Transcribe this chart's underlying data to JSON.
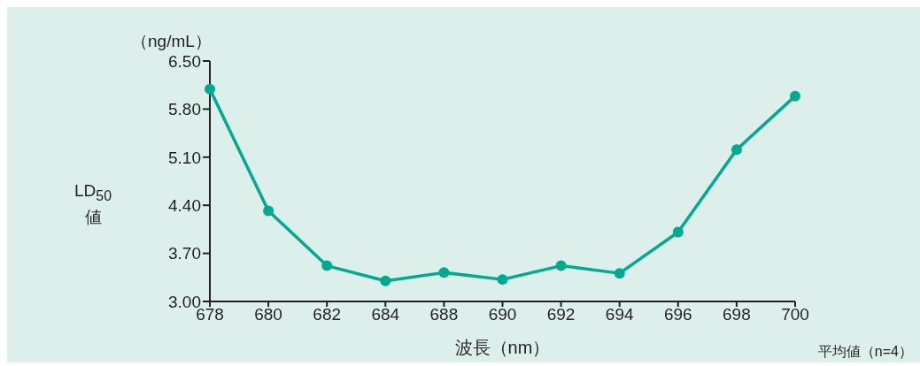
{
  "chart_data": {
    "type": "line",
    "ylabel": "LD$_{50}$値",
    "xlabel": "波長（nm）",
    "annotations": [
      "（ng/mL）",
      "平均値（n=4）"
    ],
    "categories": [
      "678",
      "680",
      "682",
      "684",
      "688",
      "690",
      "692",
      "694",
      "696",
      "698",
      "700"
    ],
    "series": [
      {
        "color": "#00a98f",
        "values": [
          6.09,
          4.32,
          3.52,
          3.3,
          3.42,
          3.32,
          3.52,
          3.41,
          4.01,
          5.21,
          5.99
        ]
      }
    ],
    "ylim": [
      3.0,
      6.5
    ],
    "yticks": [
      {
        "value": 3.0,
        "label": "3.00"
      },
      {
        "value": 3.7,
        "label": "3.70"
      },
      {
        "value": 4.4,
        "label": "4.40"
      },
      {
        "value": 5.1,
        "label": "5.10"
      },
      {
        "value": 5.8,
        "label": "5.80"
      },
      {
        "value": 6.5,
        "label": "6.50"
      }
    ],
    "grid": false,
    "legend": false,
    "marker": "circle",
    "line_style": "solid"
  }
}
